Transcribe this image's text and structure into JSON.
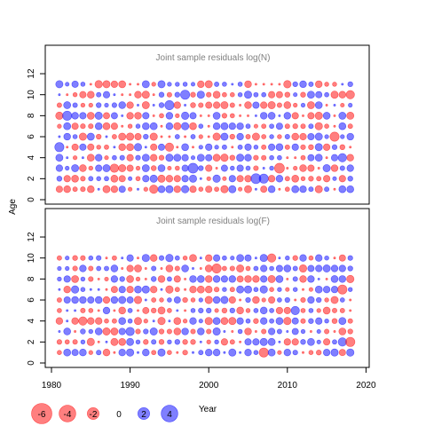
{
  "colors": {
    "negative": "#ff0000",
    "positive": "#0000ff",
    "axis": "#000000",
    "title": "#808080"
  },
  "shared_axes": {
    "ylabel": "Age",
    "xlabel": "Year",
    "x_ticks": [
      "1980",
      "1990",
      "2000",
      "2010",
      "2020"
    ],
    "y_ticks": [
      "0",
      "2",
      "4",
      "6",
      "8",
      "10",
      "12"
    ]
  },
  "legend": {
    "values": [
      -6,
      -4,
      -2,
      0,
      2,
      4
    ],
    "labels": [
      "-6",
      "-4",
      "-2",
      "0",
      "2",
      "4"
    ]
  },
  "chart_data": [
    {
      "type": "scatter",
      "title": "Joint sample residuals log(N)",
      "xlabel": "Year",
      "ylabel": "Age",
      "xlim": [
        1980,
        2020
      ],
      "ylim": [
        0,
        12
      ],
      "x_range": [
        1981,
        2018
      ],
      "ages": [
        1,
        2,
        3,
        4,
        5,
        6,
        7,
        8,
        9,
        10,
        11
      ],
      "residual_range": [
        -6,
        4
      ],
      "note": "bubble area proportional to |residual|; red = negative, blue = positive",
      "highlights": [
        {
          "year": 1986,
          "age": 11,
          "value": -2
        },
        {
          "year": 1982,
          "age": 8,
          "value": 3
        },
        {
          "year": 1981,
          "age": 5,
          "value": 3
        },
        {
          "year": 1988,
          "age": 3,
          "value": -2.5
        },
        {
          "year": 1993,
          "age": 1,
          "value": -2.5
        },
        {
          "year": 1995,
          "age": 5,
          "value": -2.5
        },
        {
          "year": 1995,
          "age": 9,
          "value": 3
        },
        {
          "year": 1997,
          "age": 10,
          "value": 3
        },
        {
          "year": 1998,
          "age": 3,
          "value": 3.5
        },
        {
          "year": 2002,
          "age": 4,
          "value": -2
        },
        {
          "year": 2006,
          "age": 2,
          "value": 3.5
        },
        {
          "year": 2007,
          "age": 2,
          "value": 3
        },
        {
          "year": 2009,
          "age": 3,
          "value": -3.5
        },
        {
          "year": 2010,
          "age": 11,
          "value": -2
        },
        {
          "year": 2016,
          "age": 6,
          "value": -3
        },
        {
          "year": 2017,
          "age": 4,
          "value": 2.5
        },
        {
          "year": 2018,
          "age": 10,
          "value": -2.5
        }
      ]
    },
    {
      "type": "scatter",
      "title": "Joint sample residuals log(F)",
      "xlabel": "Year",
      "ylabel": "Age",
      "xlim": [
        1980,
        2020
      ],
      "ylim": [
        0,
        12
      ],
      "x_range": [
        1981,
        2018
      ],
      "ages": [
        1,
        2,
        3,
        4,
        5,
        6,
        7,
        8,
        9,
        10
      ],
      "residual_range": [
        -6,
        4
      ],
      "note": "bubble area proportional to |residual|; red = negative, blue = positive",
      "highlights": [
        {
          "year": 1995,
          "age": 10,
          "value": 2
        },
        {
          "year": 2001,
          "age": 9,
          "value": -3
        },
        {
          "year": 2008,
          "age": 10,
          "value": -2.5
        },
        {
          "year": 2007,
          "age": 1,
          "value": -3
        },
        {
          "year": 2011,
          "age": 5,
          "value": 2.5
        },
        {
          "year": 2017,
          "age": 7,
          "value": -3
        },
        {
          "year": 2018,
          "age": 2,
          "value": -3
        },
        {
          "year": 2017,
          "age": 2,
          "value": 2.5
        },
        {
          "year": 1984,
          "age": 4,
          "value": -2.5
        },
        {
          "year": 1990,
          "age": 3,
          "value": 2.5
        }
      ]
    }
  ]
}
